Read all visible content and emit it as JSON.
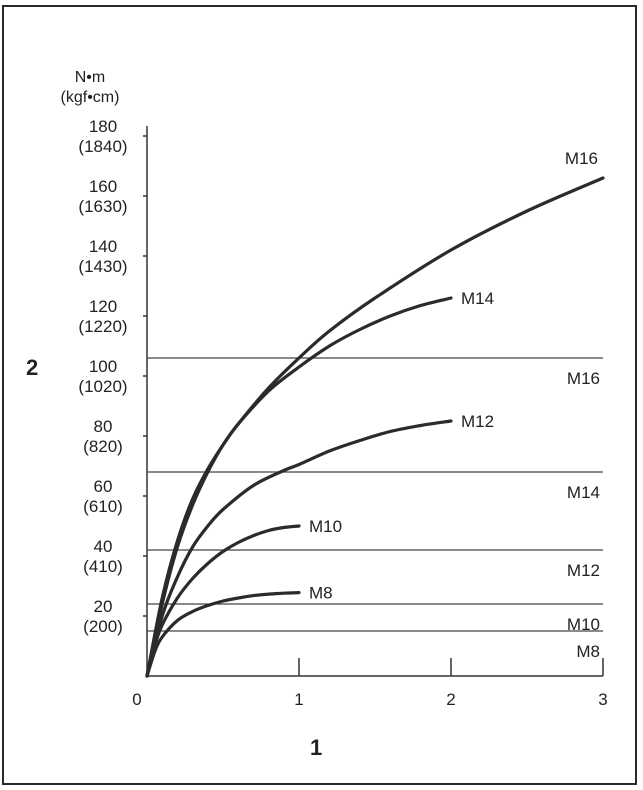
{
  "chart_data": {
    "type": "line",
    "xlabel": "1",
    "ylabel": "2",
    "y_unit_primary": "N•m",
    "y_unit_secondary": "(kgf•cm)",
    "xlim": [
      0,
      3
    ],
    "ylim": [
      0,
      190
    ],
    "x_ticks": [
      0,
      1,
      2,
      3
    ],
    "x_tick_labels": [
      "0",
      "1",
      "2",
      "3"
    ],
    "y_ticks": [
      {
        "value": 20,
        "label": "20",
        "sub": "(200)"
      },
      {
        "value": 40,
        "label": "40",
        "sub": "(410)"
      },
      {
        "value": 60,
        "label": "60",
        "sub": "(610)"
      },
      {
        "value": 80,
        "label": "80",
        "sub": "(820)"
      },
      {
        "value": 100,
        "label": "100",
        "sub": "(1020)"
      },
      {
        "value": 120,
        "label": "120",
        "sub": "(1220)"
      },
      {
        "value": 140,
        "label": "140",
        "sub": "(1430)"
      },
      {
        "value": 160,
        "label": "160",
        "sub": "(1630)"
      },
      {
        "value": 180,
        "label": "180",
        "sub": "(1840)"
      }
    ],
    "series": [
      {
        "name": "M8",
        "x": [
          0,
          0.05,
          0.1,
          0.2,
          0.3,
          0.4,
          0.5,
          0.6,
          0.7,
          0.8,
          0.9,
          1.0
        ],
        "y": [
          0,
          8,
          13,
          18.5,
          21.5,
          23.5,
          25,
          26,
          26.8,
          27.3,
          27.6,
          27.8
        ]
      },
      {
        "name": "M10",
        "x": [
          0,
          0.05,
          0.1,
          0.2,
          0.3,
          0.4,
          0.5,
          0.6,
          0.7,
          0.8,
          0.9,
          1.0
        ],
        "y": [
          0,
          10,
          17,
          26,
          32.5,
          37.5,
          41.5,
          44.5,
          46.8,
          48.5,
          49.5,
          50
        ]
      },
      {
        "name": "M12",
        "x": [
          0,
          0.1,
          0.2,
          0.3,
          0.4,
          0.5,
          0.7,
          0.9,
          1.0,
          1.2,
          1.4,
          1.6,
          1.8,
          2.0
        ],
        "y": [
          0,
          20,
          33,
          43,
          50,
          55.5,
          63.5,
          68.5,
          70.5,
          75,
          78.5,
          81.5,
          83.5,
          85
        ]
      },
      {
        "name": "M14",
        "x": [
          0,
          0.1,
          0.2,
          0.3,
          0.4,
          0.5,
          0.6,
          0.8,
          1.0,
          1.2,
          1.4,
          1.6,
          1.8,
          2.0
        ],
        "y": [
          0,
          26,
          45,
          59,
          69,
          77,
          84,
          95,
          103,
          110,
          115.5,
          120,
          123.5,
          126
        ]
      },
      {
        "name": "M16",
        "x": [
          0,
          0.1,
          0.2,
          0.3,
          0.4,
          0.5,
          0.6,
          0.8,
          1.0,
          1.2,
          1.5,
          2.0,
          2.5,
          3.0
        ],
        "y": [
          0,
          24,
          43,
          57,
          68,
          77,
          84,
          96,
          106,
          115,
          126,
          142,
          155,
          166
        ]
      }
    ],
    "reference_lines": [
      {
        "name": "M8",
        "value": 15
      },
      {
        "name": "M10",
        "value": 24
      },
      {
        "name": "M12",
        "value": 42
      },
      {
        "name": "M14",
        "value": 68
      },
      {
        "name": "M16",
        "value": 106
      }
    ],
    "grid": false,
    "legend": "none"
  }
}
